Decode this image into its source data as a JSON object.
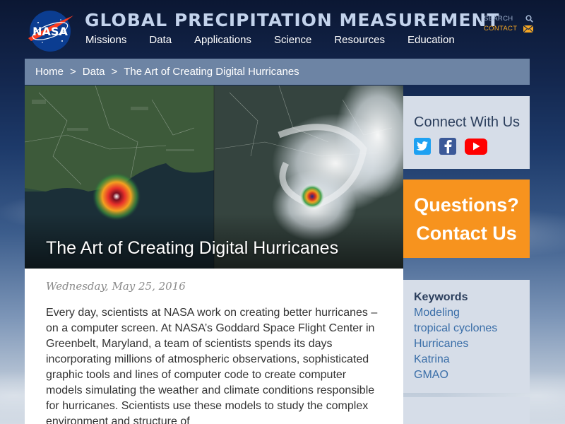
{
  "header": {
    "site_title": "GLOBAL PRECIPITATION MEASUREMENT",
    "logo_text": "NASA",
    "nav": [
      "Missions",
      "Data",
      "Applications",
      "Science",
      "Resources",
      "Education"
    ],
    "utility": {
      "search_label": "SEARCH",
      "contact_label": "CONTACT"
    }
  },
  "breadcrumb": [
    "Home",
    "Data",
    "The Art of Creating Digital Hurricanes"
  ],
  "breadcrumb_separator": ">",
  "hero": {
    "title": "The Art of Creating Digital Hurricanes"
  },
  "article": {
    "date": "Wednesday, May 25, 2016",
    "body": "Every day, scientists at NASA work on creating better hurricanes – on a computer screen. At NASA’s Goddard Space Flight Center in Greenbelt, Maryland, a team of scientists spends its days incorporating millions of atmospheric observations, sophisticated graphic tools and lines of computer code to create computer models simulating the weather and climate conditions responsible for hurricanes. Scientists use these models to study the complex environment and structure of"
  },
  "sidebar": {
    "connect_title": "Connect With Us",
    "social": [
      "twitter-icon",
      "facebook-icon",
      "youtube-icon"
    ],
    "questions_line1": "Questions?",
    "questions_line2": "Contact Us",
    "keywords_title": "Keywords",
    "keywords": [
      "Modeling",
      "tropical cyclones",
      "Hurricanes",
      "Katrina",
      "GMAO"
    ]
  },
  "colors": {
    "accent_orange": "#f7931e",
    "breadcrumb_bg": "#6d84a4",
    "sidebar_bg": "#d6dde8",
    "link_blue": "#3a6ea8"
  }
}
